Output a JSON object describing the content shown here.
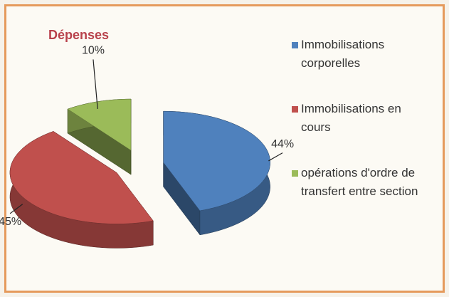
{
  "chart_data": {
    "type": "pie",
    "title": "Dépenses",
    "categories": [
      "Immobilisations corporelles",
      "Immobilisations en cours",
      "opérations d'ordre de transfert entre section"
    ],
    "values": [
      44,
      45,
      10
    ],
    "value_labels": [
      "44%",
      "45%",
      "10%"
    ],
    "colors": [
      "#4f81bd",
      "#c0504d",
      "#9bbb59"
    ],
    "legend": "right"
  }
}
